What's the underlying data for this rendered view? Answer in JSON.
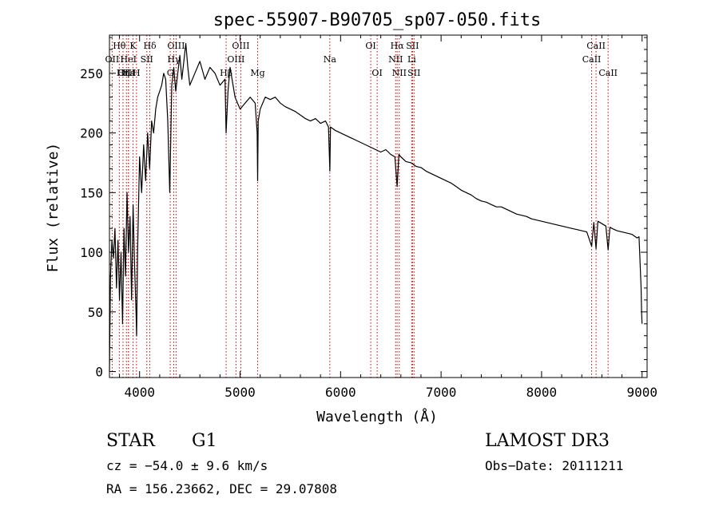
{
  "chart_data": {
    "type": "line",
    "title": "spec-55907-B90705_sp07-050.fits",
    "xlabel": "Wavelength (Å)",
    "ylabel": "Flux (relative)",
    "xlim": [
      3700,
      9050
    ],
    "ylim": [
      -5,
      282
    ],
    "x_ticks": [
      4000,
      5000,
      6000,
      7000,
      8000,
      9000
    ],
    "y_ticks": [
      0,
      50,
      100,
      150,
      200,
      250
    ],
    "grid": false,
    "series": [
      {
        "name": "flux",
        "x": [
          3700,
          3710,
          3725,
          3740,
          3755,
          3770,
          3785,
          3800,
          3815,
          3830,
          3845,
          3860,
          3875,
          3890,
          3905,
          3920,
          3935,
          3950,
          3965,
          3970,
          3980,
          4000,
          4020,
          4040,
          4060,
          4080,
          4100,
          4120,
          4140,
          4160,
          4180,
          4200,
          4220,
          4240,
          4260,
          4280,
          4300,
          4320,
          4340,
          4360,
          4380,
          4400,
          4420,
          4440,
          4460,
          4480,
          4500,
          4550,
          4600,
          4650,
          4700,
          4750,
          4800,
          4850,
          4861,
          4880,
          4900,
          4950,
          5000,
          5050,
          5100,
          5150,
          5170,
          5175,
          5180,
          5200,
          5250,
          5300,
          5350,
          5400,
          5450,
          5500,
          5550,
          5600,
          5650,
          5700,
          5750,
          5800,
          5850,
          5880,
          5893,
          5900,
          5950,
          6000,
          6050,
          6100,
          6150,
          6200,
          6250,
          6300,
          6350,
          6400,
          6450,
          6500,
          6540,
          6563,
          6580,
          6600,
          6650,
          6700,
          6750,
          6800,
          6850,
          6900,
          6950,
          7000,
          7050,
          7100,
          7150,
          7200,
          7250,
          7300,
          7350,
          7400,
          7450,
          7500,
          7550,
          7600,
          7650,
          7700,
          7750,
          7800,
          7850,
          7900,
          7950,
          8000,
          8050,
          8100,
          8150,
          8200,
          8250,
          8300,
          8350,
          8400,
          8450,
          8498,
          8520,
          8542,
          8560,
          8600,
          8640,
          8662,
          8680,
          8700,
          8750,
          8800,
          8850,
          8900,
          8950,
          8970,
          8990,
          8995,
          9000
        ],
        "y": [
          0,
          80,
          110,
          95,
          120,
          70,
          110,
          60,
          100,
          40,
          120,
          80,
          150,
          100,
          130,
          60,
          140,
          90,
          50,
          30,
          100,
          180,
          150,
          190,
          160,
          200,
          170,
          210,
          200,
          220,
          230,
          235,
          240,
          250,
          245,
          210,
          150,
          240,
          255,
          235,
          250,
          265,
          245,
          260,
          275,
          255,
          240,
          250,
          260,
          245,
          255,
          250,
          240,
          245,
          200,
          235,
          255,
          230,
          220,
          225,
          230,
          225,
          200,
          160,
          210,
          220,
          230,
          228,
          230,
          225,
          222,
          220,
          218,
          215,
          212,
          210,
          212,
          208,
          210,
          205,
          168,
          205,
          202,
          200,
          198,
          196,
          194,
          192,
          190,
          188,
          186,
          184,
          186,
          182,
          180,
          155,
          182,
          180,
          176,
          175,
          172,
          171,
          168,
          166,
          164,
          162,
          160,
          158,
          155,
          152,
          150,
          148,
          145,
          143,
          142,
          140,
          138,
          138,
          136,
          134,
          132,
          131,
          130,
          128,
          127,
          126,
          125,
          124,
          123,
          122,
          121,
          120,
          119,
          118,
          117,
          105,
          125,
          103,
          126,
          124,
          122,
          102,
          121,
          120,
          118,
          117,
          116,
          115,
          112,
          113,
          70,
          50,
          40
        ]
      }
    ],
    "lines": [
      {
        "label": "Hθ",
        "x": 3798,
        "row": 1
      },
      {
        "label": "OII",
        "x": 3727,
        "row": 2
      },
      {
        "label": "OIII",
        "x": 3869,
        "row": 3
      },
      {
        "label": "K",
        "x": 3934,
        "row": 1
      },
      {
        "label": "HeI",
        "x": 3889,
        "row": 2
      },
      {
        "label": "Hε",
        "x": 3890,
        "row": 3
      },
      {
        "label": "Hη",
        "x": 3835,
        "row": 3
      },
      {
        "label": "SII",
        "x": 4072,
        "row": 2
      },
      {
        "label": "H",
        "x": 3969,
        "row": 3
      },
      {
        "label": "Hδ",
        "x": 4102,
        "row": 1
      },
      {
        "label": "OIII",
        "x": 4363,
        "row": 1
      },
      {
        "label": "Hγ",
        "x": 4340,
        "row": 2
      },
      {
        "label": "G",
        "x": 4305,
        "row": 3
      },
      {
        "label": "OIII",
        "x": 5007,
        "row": 1
      },
      {
        "label": "OIII",
        "x": 4959,
        "row": 2
      },
      {
        "label": "Hβ",
        "x": 4861,
        "row": 3
      },
      {
        "label": "Mg",
        "x": 5175,
        "row": 3
      },
      {
        "label": "Na",
        "x": 5893,
        "row": 2
      },
      {
        "label": "OI",
        "x": 6300,
        "row": 1
      },
      {
        "label": "OI",
        "x": 6364,
        "row": 3
      },
      {
        "label": "Hα",
        "x": 6563,
        "row": 1
      },
      {
        "label": "NII",
        "x": 6548,
        "row": 2
      },
      {
        "label": "NII",
        "x": 6584,
        "row": 3
      },
      {
        "label": "SII",
        "x": 6716,
        "row": 1
      },
      {
        "label": "Li",
        "x": 6708,
        "row": 2
      },
      {
        "label": "SII",
        "x": 6731,
        "row": 3
      },
      {
        "label": "CaII",
        "x": 8498,
        "row": 2
      },
      {
        "label": "CaII",
        "x": 8542,
        "row": 1
      },
      {
        "label": "CaII",
        "x": 8662,
        "row": 3
      }
    ],
    "colors": {
      "spectrum": "#000000",
      "lines": "#cc0000",
      "axes": "#000000"
    }
  },
  "info": {
    "class": "STAR",
    "subclass": "G1",
    "survey": "LAMOST DR3",
    "cz": "cz = −54.0 ± 9.6 km/s",
    "obs_date": "Obs−Date: 20111211",
    "coords": "RA = 156.23662, DEC =  29.07808"
  }
}
